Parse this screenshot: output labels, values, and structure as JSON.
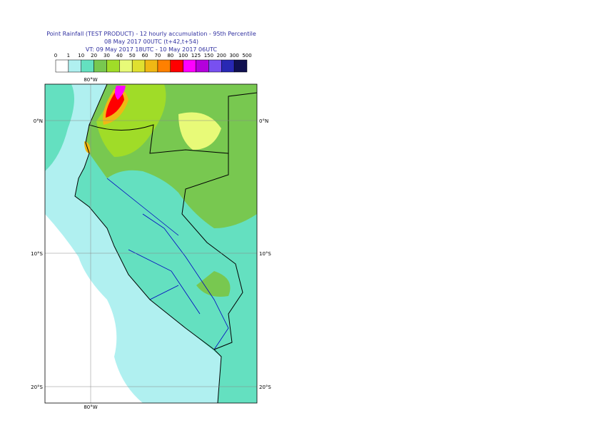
{
  "header": {
    "title": "Point Rainfall (TEST PRODUCT) - 12 hourly accumulation - 95th Percentile",
    "line2": "08 May 2017 00UTC (t+42,t+54)",
    "line3": "VT: 09 May 2017 18UTC - 10 May 2017 06UTC"
  },
  "legend": {
    "labels": [
      "0",
      "1",
      "10",
      "20",
      "30",
      "40",
      "50",
      "60",
      "70",
      "80",
      "100",
      "125",
      "150",
      "200",
      "300",
      "500"
    ],
    "colors": [
      "#ffffff",
      "#b0f0f0",
      "#64e0c0",
      "#78c850",
      "#a0dc28",
      "#e8fa78",
      "#e0e030",
      "#f0b814",
      "#ff8000",
      "#ff0000",
      "#ff00ff",
      "#b400dc",
      "#7850f0",
      "#2828b4",
      "#101050"
    ]
  },
  "map": {
    "lon_labels": [
      "80°W"
    ],
    "lat_labels": [
      "0°N",
      "10°S",
      "20°S"
    ]
  }
}
